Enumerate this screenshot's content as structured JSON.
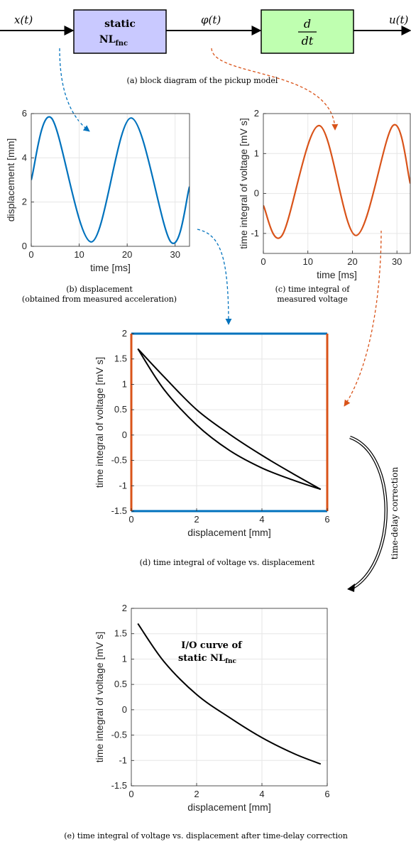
{
  "block_diagram": {
    "signals": [
      "x(t)",
      "φ(t)",
      "u(t)"
    ],
    "static_block": {
      "line1": "static",
      "line2_main": "NL",
      "line2_sub": "fnc"
    },
    "derivative_block": {
      "numerator": "d",
      "denominator": "dt"
    },
    "caption": "(a) block diagram of the pickup model"
  },
  "captions": {
    "b_line1": "(b) displacement",
    "b_line2": "(obtained from measured acceleration)",
    "c_line1": "(c) time integral of",
    "c_line2": "measured voltage",
    "d": "(d) time integral of voltage vs. displacement",
    "e": "(e) time integral of voltage vs. displacement after time-delay correction"
  },
  "annotations": {
    "time_delay_correction": "time-delay correction",
    "io_curve_line1": "I/O curve of",
    "io_curve_line2_main": "static NL",
    "io_curve_line2_sub": "fnc"
  },
  "colors": {
    "blue": "#0072BD",
    "orange": "#D95319",
    "static_block_fill": "#C9C9FF",
    "derivative_block_fill": "#BFFFB0",
    "grid": "#E6E6E6"
  },
  "chart_data": [
    {
      "id": "b",
      "type": "line",
      "xlabel": "time [ms]",
      "ylabel": "displacement [mm]",
      "xlim": [
        0,
        33
      ],
      "ylim": [
        0,
        6
      ],
      "xticks": [
        "0",
        "10",
        "20",
        "30"
      ],
      "yticks": [
        "0",
        "2",
        "4",
        "6"
      ],
      "series": [
        {
          "color": "#0072BD",
          "x": [
            0,
            4.2,
            12.5,
            20.8,
            29.1,
            33
          ],
          "y": [
            3.0,
            5.8,
            0.2,
            5.8,
            0.2,
            2.7
          ]
        }
      ]
    },
    {
      "id": "c",
      "type": "line",
      "xlabel": "time [ms]",
      "ylabel": "time integral of voltage [mV s]",
      "xlim": [
        0,
        33
      ],
      "ylim": [
        -1.5,
        2
      ],
      "xticks": [
        "0",
        "10",
        "20",
        "30"
      ],
      "yticks": [
        "-1",
        "0",
        "1",
        "2"
      ],
      "series": [
        {
          "color": "#D95319",
          "x": [
            0,
            4.2,
            12.5,
            20.8,
            29.1,
            33
          ],
          "y": [
            -0.3,
            -1.05,
            1.7,
            -1.05,
            1.7,
            0.25
          ]
        }
      ]
    },
    {
      "id": "d",
      "type": "line",
      "xlabel": "displacement [mm]",
      "ylabel": "time integral of voltage [mV s]",
      "xlim": [
        0,
        6
      ],
      "ylim": [
        -1.5,
        2
      ],
      "xticks": [
        "0",
        "2",
        "4",
        "6"
      ],
      "yticks": [
        "-1.5",
        "-1",
        "-0.5",
        "0",
        "0.5",
        "1",
        "1.5",
        "2"
      ],
      "series": [
        {
          "name": "lower branch",
          "color": "#000000",
          "x": [
            0.2,
            1,
            2,
            3,
            4,
            5,
            5.8
          ],
          "y": [
            1.7,
            0.9,
            0.2,
            -0.3,
            -0.65,
            -0.9,
            -1.07
          ]
        },
        {
          "name": "upper branch",
          "color": "#000000",
          "x": [
            0.2,
            1,
            2,
            3,
            4,
            5,
            5.8
          ],
          "y": [
            1.7,
            1.15,
            0.5,
            0.02,
            -0.4,
            -0.78,
            -1.07
          ]
        }
      ],
      "frame": {
        "top_bottom_color": "#0072BD",
        "left_right_color": "#D95319"
      }
    },
    {
      "id": "e",
      "type": "line",
      "xlabel": "displacement [mm]",
      "ylabel": "time integral of voltage [mV s]",
      "xlim": [
        0,
        6
      ],
      "ylim": [
        -1.5,
        2
      ],
      "xticks": [
        "0",
        "2",
        "4",
        "6"
      ],
      "yticks": [
        "-1.5",
        "-1",
        "-0.5",
        "0",
        "0.5",
        "1",
        "1.5",
        "2"
      ],
      "series": [
        {
          "color": "#000000",
          "x": [
            0.2,
            1,
            2,
            3,
            4,
            5,
            5.8
          ],
          "y": [
            1.7,
            0.95,
            0.3,
            -0.15,
            -0.55,
            -0.87,
            -1.07
          ]
        }
      ]
    }
  ]
}
